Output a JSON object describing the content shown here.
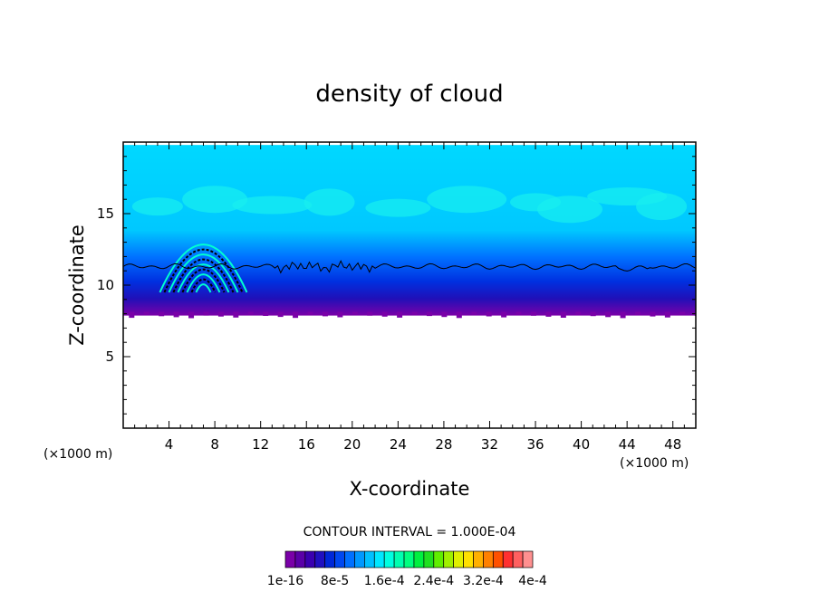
{
  "chart_data": {
    "type": "contour",
    "title": "density of cloud",
    "xlabel": "X-coordinate",
    "ylabel": "Z-coordinate",
    "x_unit_left": "(×1000 m)",
    "x_unit_right": "(×1000 m)",
    "xlim": [
      0,
      50
    ],
    "ylim": [
      0,
      20
    ],
    "x_ticks": [
      "4",
      "8",
      "12",
      "16",
      "20",
      "24",
      "28",
      "32",
      "36",
      "40",
      "44",
      "48"
    ],
    "y_ticks": [
      "5",
      "10",
      "15"
    ],
    "contour_interval_text": "CONTOUR INTERVAL = 1.000E-04",
    "colorbar_labels": [
      "1e-16",
      "8e-5",
      "1.6e-4",
      "2.4e-4",
      "3.2e-4",
      "4e-4"
    ],
    "colorbar_colors": [
      "#7a00a8",
      "#5a00a8",
      "#3a00b0",
      "#2010c0",
      "#0028d8",
      "#0048f0",
      "#0070ff",
      "#0098ff",
      "#00c0ff",
      "#00e8ff",
      "#00ffe0",
      "#00ffb0",
      "#00ff80",
      "#00f040",
      "#20e020",
      "#60ee00",
      "#a0f000",
      "#e0f000",
      "#ffe000",
      "#ffb000",
      "#ff8000",
      "#ff5000",
      "#ff3030",
      "#ff6060",
      "#ff9090"
    ],
    "cloud_layer": {
      "base_z": 8.0,
      "top_z": 19.8,
      "black_contour_z": 11.3,
      "disturbance_x": [
        5,
        9
      ],
      "disturbance_top_z": 14.5
    }
  }
}
